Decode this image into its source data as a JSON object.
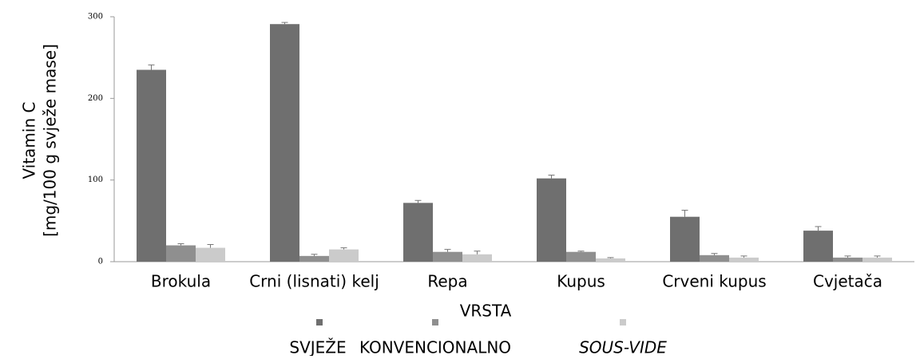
{
  "chart_data": {
    "type": "bar",
    "xlabel": "VRSTA",
    "ylabel": [
      "Vitamin C",
      "[mg/100 g svježe mase]"
    ],
    "categories": [
      "Brokula",
      "Crni (lisnati) kelj",
      "Repa",
      "Kupus",
      "Crveni kupus",
      "Cvjetača"
    ],
    "series": [
      {
        "name": "SVJEŽE",
        "color": "#6f6f6f",
        "values": [
          235,
          291,
          72,
          102,
          55,
          38
        ],
        "errors": [
          6,
          2,
          3,
          4,
          8,
          5
        ]
      },
      {
        "name": "KONVENCIONALNO",
        "color": "#8f8f8f",
        "values": [
          20,
          7,
          12,
          12,
          8,
          5
        ],
        "errors": [
          2,
          2,
          3,
          1,
          2,
          2
        ]
      },
      {
        "name": "SOUS-VIDE",
        "color": "#cbcbcb",
        "values": [
          17,
          15,
          9,
          4,
          5,
          5
        ],
        "errors": [
          4,
          2,
          4,
          1,
          2,
          2
        ]
      }
    ],
    "ylim": [
      0,
      300
    ],
    "yticks": [
      0,
      100,
      200,
      300
    ],
    "grid": false,
    "legend": "bottom"
  }
}
